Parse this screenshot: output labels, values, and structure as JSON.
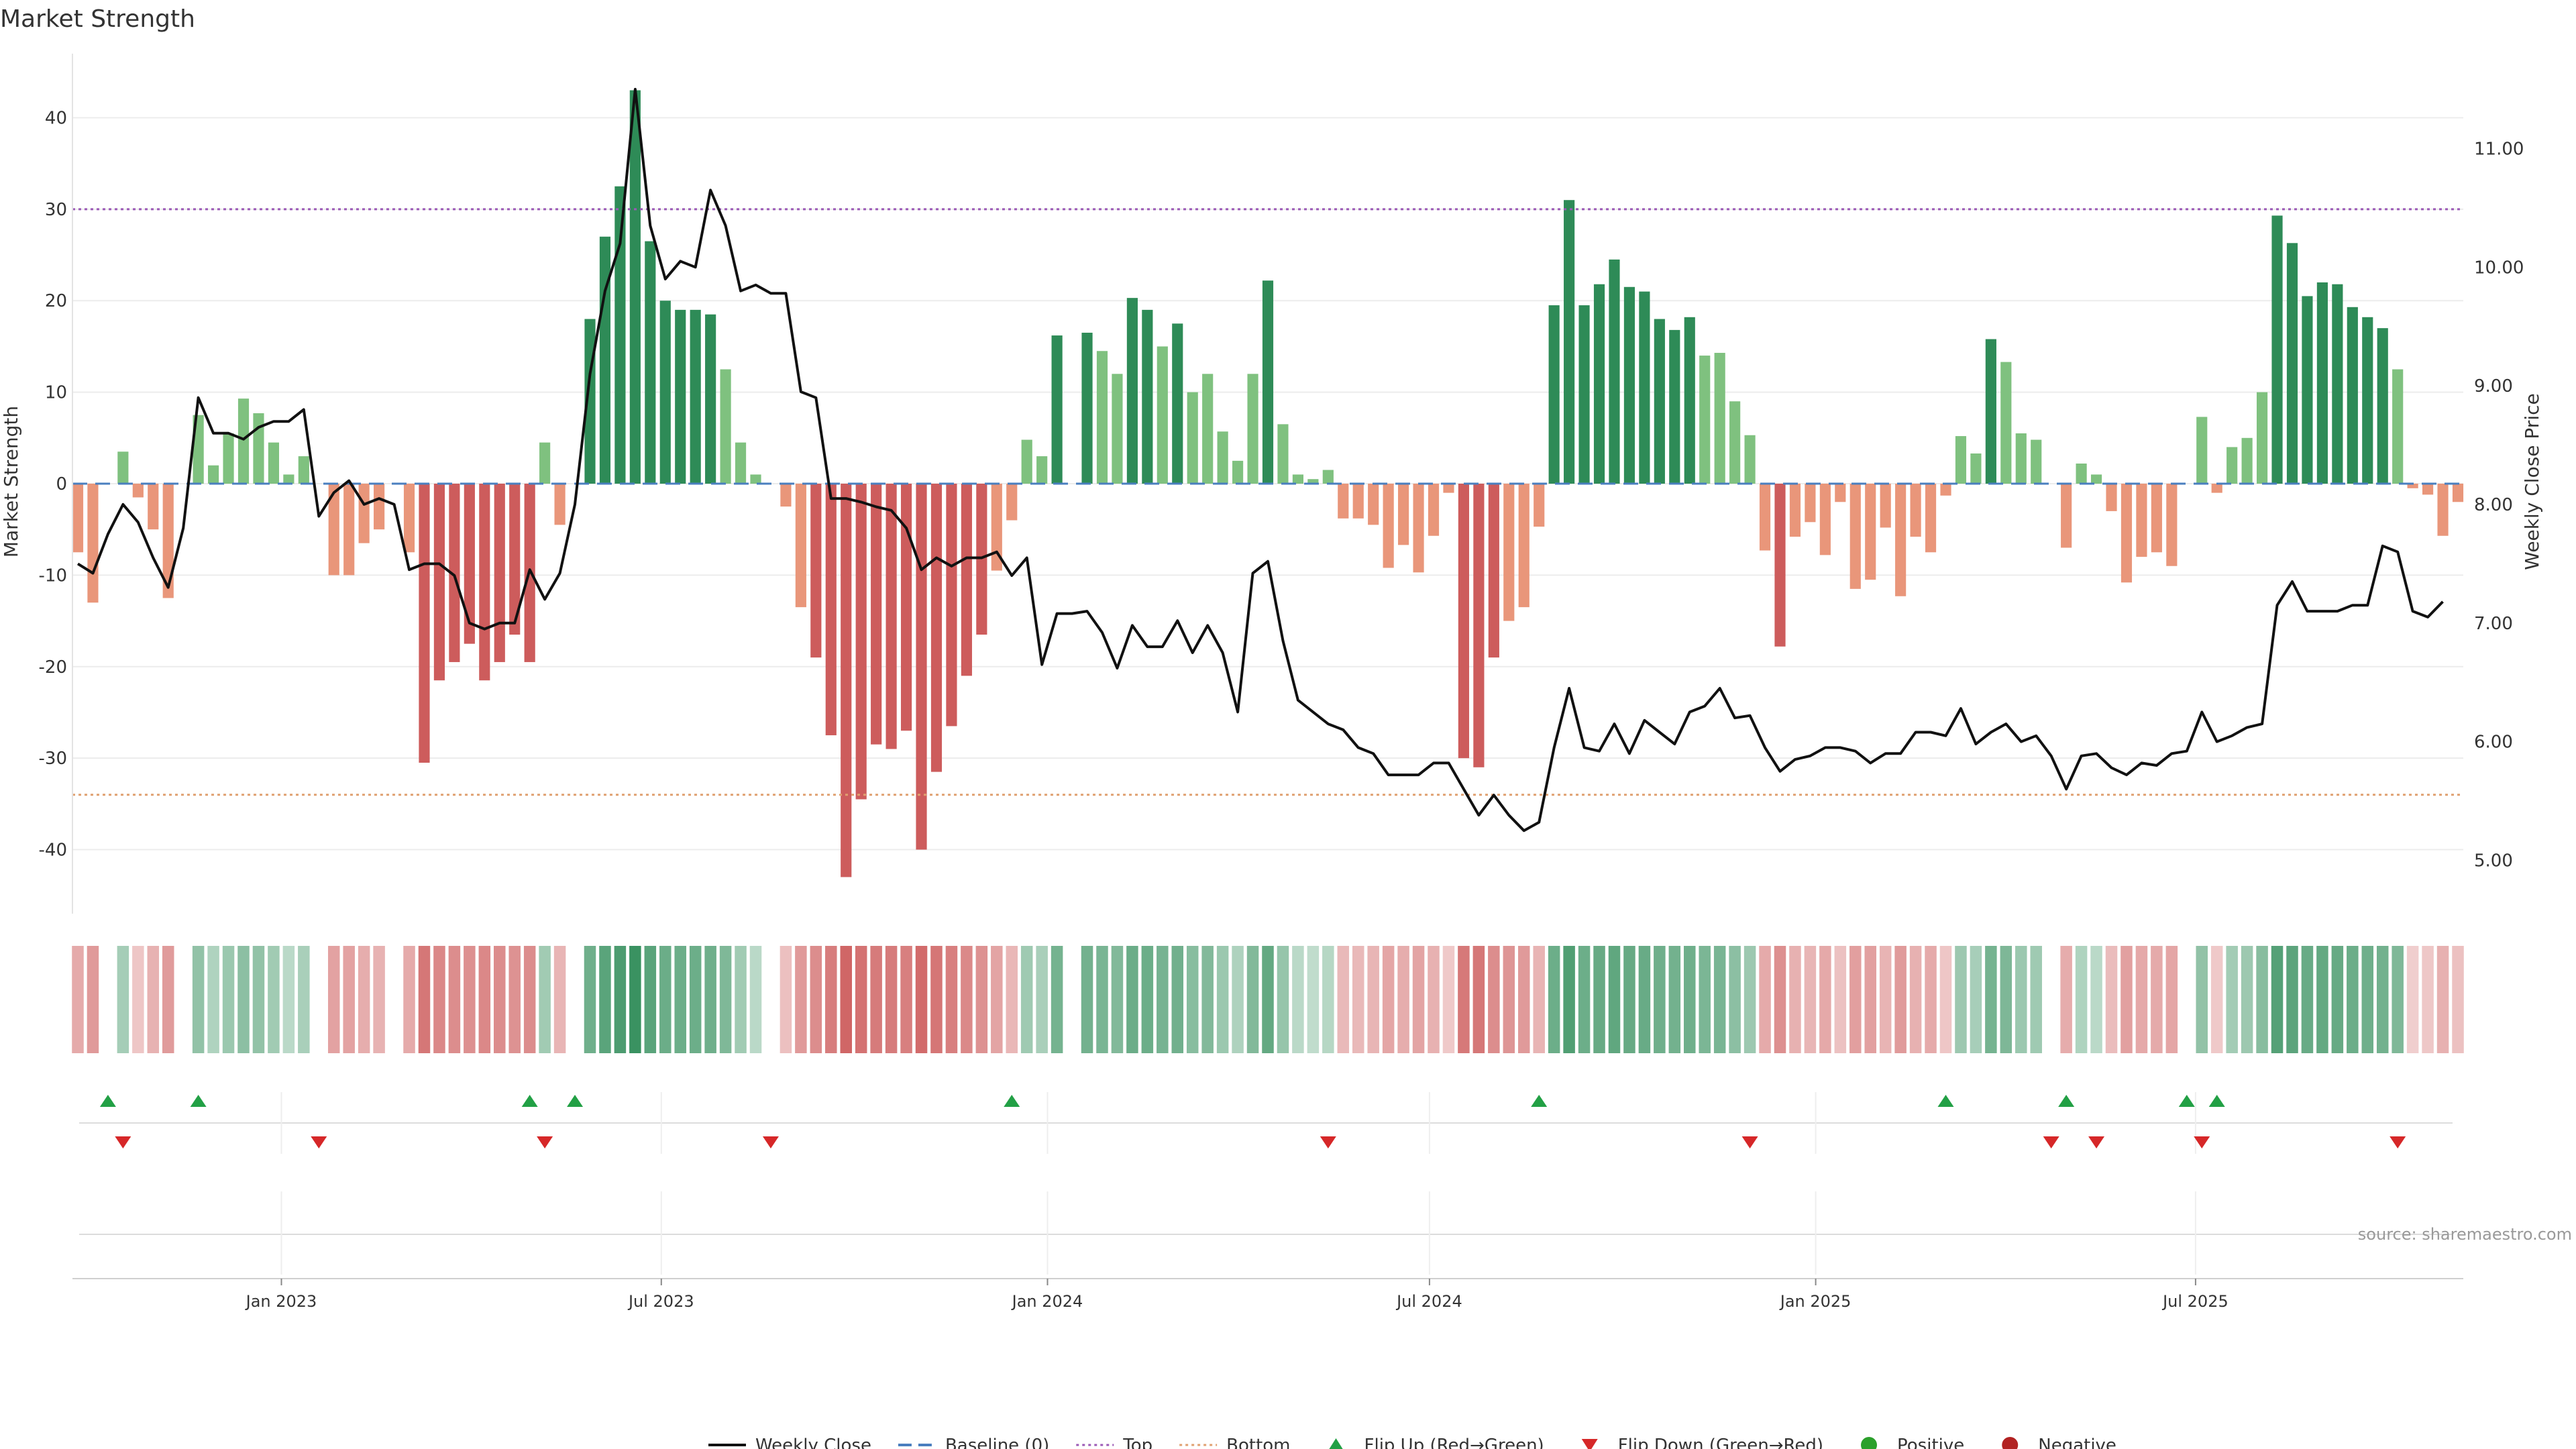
{
  "chart_data": {
    "type": "bar",
    "title": "Market Strength",
    "ylabel": "Market Strength",
    "y2label": "Weekly Close Price",
    "ylim": [
      -47,
      47
    ],
    "y2lim": [
      4.55,
      11.8
    ],
    "x_start": "2022-09-26",
    "x_end": "2025-11-03",
    "y_ticks": [
      40,
      30,
      20,
      10,
      0,
      -10,
      -20,
      -30,
      -40
    ],
    "y2_ticks": [
      {
        "value": 11.0,
        "label": "11.00"
      },
      {
        "value": 10.0,
        "label": "10.00"
      },
      {
        "value": 9.0,
        "label": "9.00"
      },
      {
        "value": 8.0,
        "label": "8.00"
      },
      {
        "value": 7.0,
        "label": "7.00"
      },
      {
        "value": 6.0,
        "label": "6.00"
      },
      {
        "value": 5.0,
        "label": "5.00"
      }
    ],
    "x_ticks": [
      {
        "date": "2023-01-01",
        "label": "Jan 2023"
      },
      {
        "date": "2023-07-01",
        "label": "Jul 2023"
      },
      {
        "date": "2024-01-01",
        "label": "Jan 2024"
      },
      {
        "date": "2024-07-01",
        "label": "Jul 2024"
      },
      {
        "date": "2025-01-01",
        "label": "Jan 2025"
      },
      {
        "date": "2025-07-01",
        "label": "Jul 2025"
      }
    ],
    "top_line": 30,
    "bottom_line": -34,
    "baseline": 0,
    "strength": [
      -7.5,
      -13,
      0,
      3.5,
      -1.5,
      -5,
      -12.5,
      0,
      7.5,
      2,
      5.5,
      9.3,
      7.7,
      4.5,
      1,
      3,
      0,
      -10,
      -10,
      -6.5,
      -5,
      0,
      -7.5,
      -30.5,
      -21.5,
      -19.5,
      -17.5,
      -21.5,
      -19.5,
      -16.5,
      -19.5,
      4.5,
      -4.5,
      0,
      18,
      27,
      32.5,
      43,
      26.5,
      20,
      19,
      19,
      18.5,
      12.5,
      4.5,
      1,
      0,
      -2.5,
      -13.5,
      -19,
      -27.5,
      -43,
      -34.5,
      -28.5,
      -29,
      -27,
      -40,
      -31.5,
      -26.5,
      -21,
      -16.5,
      -9.5,
      -4,
      4.8,
      3,
      16.2,
      0,
      16.5,
      14.5,
      12,
      20.3,
      19,
      15,
      17.5,
      10,
      12,
      5.7,
      2.5,
      12,
      22.2,
      6.5,
      1,
      0.5,
      1.5,
      -3.8,
      -3.8,
      -4.5,
      -9.2,
      -6.7,
      -9.7,
      -5.7,
      -1,
      -30,
      -31,
      -19,
      -15,
      -13.5,
      -4.7,
      19.5,
      31,
      19.5,
      21.8,
      24.5,
      21.5,
      21,
      18,
      16.8,
      18.2,
      14,
      14.3,
      9,
      5.3,
      -7.3,
      -17.8,
      -5.8,
      -4.2,
      -7.8,
      -2,
      -11.5,
      -10.5,
      -4.8,
      -12.3,
      -5.8,
      -7.5,
      -1.3,
      5.2,
      3.3,
      15.8,
      13.3,
      5.5,
      4.8,
      0,
      -7,
      2.2,
      1,
      -3,
      -10.8,
      -8,
      -7.5,
      -9,
      0,
      7.3,
      -1,
      4,
      5,
      10,
      29.3,
      26.3,
      20.5,
      22,
      21.8,
      19.3,
      18.2,
      17,
      12.5,
      -0.5,
      -1.2,
      -5.7,
      -2
    ],
    "weekly_close": [
      7.5,
      7.42,
      7.75,
      8.0,
      7.85,
      7.55,
      7.3,
      7.8,
      8.9,
      8.6,
      8.6,
      8.55,
      8.65,
      8.7,
      8.7,
      8.8,
      7.9,
      8.1,
      8.2,
      8.0,
      8.05,
      8.0,
      7.45,
      7.5,
      7.5,
      7.4,
      7.0,
      6.95,
      7.0,
      7.0,
      7.45,
      7.2,
      7.42,
      8.0,
      9.1,
      9.8,
      10.2,
      11.5,
      10.35,
      9.9,
      10.05,
      10.0,
      10.65,
      10.35,
      9.8,
      9.85,
      9.78,
      9.78,
      8.95,
      8.9,
      8.05,
      8.05,
      8.02,
      7.98,
      7.95,
      7.8,
      7.45,
      7.55,
      7.48,
      7.55,
      7.55,
      7.6,
      7.4,
      7.55,
      6.65,
      7.08,
      7.08,
      7.1,
      6.92,
      6.62,
      6.98,
      6.8,
      6.8,
      7.02,
      6.75,
      6.98,
      6.75,
      6.25,
      7.42,
      7.52,
      6.85,
      6.35,
      6.25,
      6.15,
      6.1,
      5.95,
      5.9,
      5.72,
      5.72,
      5.72,
      5.82,
      5.82,
      5.6,
      5.38,
      5.55,
      5.38,
      5.25,
      5.32,
      5.95,
      6.45,
      5.95,
      5.92,
      6.15,
      5.9,
      6.18,
      6.08,
      5.98,
      6.25,
      6.3,
      6.45,
      6.2,
      6.22,
      5.95,
      5.75,
      5.85,
      5.88,
      5.95,
      5.95,
      5.92,
      5.82,
      5.9,
      5.9,
      6.08,
      6.08,
      6.05,
      6.28,
      5.98,
      6.08,
      6.15,
      6.0,
      6.05,
      5.88,
      5.6,
      5.88,
      5.9,
      5.78,
      5.72,
      5.82,
      5.8,
      5.9,
      5.92,
      6.25,
      6.0,
      6.05,
      6.12,
      6.15,
      7.15,
      7.35,
      7.1,
      7.1,
      7.1,
      7.15,
      7.15,
      7.65,
      7.6,
      7.1,
      7.05,
      7.18
    ],
    "flips": [
      {
        "type": "down",
        "i": 3
      },
      {
        "type": "up",
        "i": 2
      },
      {
        "type": "up",
        "i": 8
      },
      {
        "type": "down",
        "i": 16
      },
      {
        "type": "up",
        "i": 30
      },
      {
        "type": "down",
        "i": 31
      },
      {
        "type": "up",
        "i": 33
      },
      {
        "type": "down",
        "i": 46
      },
      {
        "type": "up",
        "i": 62
      },
      {
        "type": "down",
        "i": 83
      },
      {
        "type": "up",
        "i": 97
      },
      {
        "type": "down",
        "i": 111
      },
      {
        "type": "up",
        "i": 124
      },
      {
        "type": "down",
        "i": 131
      },
      {
        "type": "up",
        "i": 132
      },
      {
        "type": "down",
        "i": 134
      },
      {
        "type": "up",
        "i": 140
      },
      {
        "type": "down",
        "i": 141
      },
      {
        "type": "up",
        "i": 142
      },
      {
        "type": "down",
        "i": 154
      }
    ],
    "palette": {
      "green_dark": "#2e8b57",
      "green_light": "#7fc17f",
      "red_dark": "#cd5c5c",
      "red_light": "#e9967a",
      "baseline": "#4a7fbf",
      "top": "#9b59b6",
      "bottom": "#e0a070",
      "price": "#111111",
      "flip_up": "#22a045",
      "flip_down": "#d62728",
      "positive": "#2ca02c",
      "negative": "#b22222"
    },
    "legend": [
      {
        "key": "weekly_close",
        "label": "Weekly Close"
      },
      {
        "key": "baseline",
        "label": "Baseline (0)"
      },
      {
        "key": "top",
        "label": "Top"
      },
      {
        "key": "bottom",
        "label": "Bottom"
      },
      {
        "key": "flip_up",
        "label": "Flip Up (Red→Green)"
      },
      {
        "key": "flip_down",
        "label": "Flip Down (Green→Red)"
      },
      {
        "key": "positive",
        "label": "Positive"
      },
      {
        "key": "negative",
        "label": "Negative"
      }
    ],
    "source": "source: sharemaestro.com"
  }
}
